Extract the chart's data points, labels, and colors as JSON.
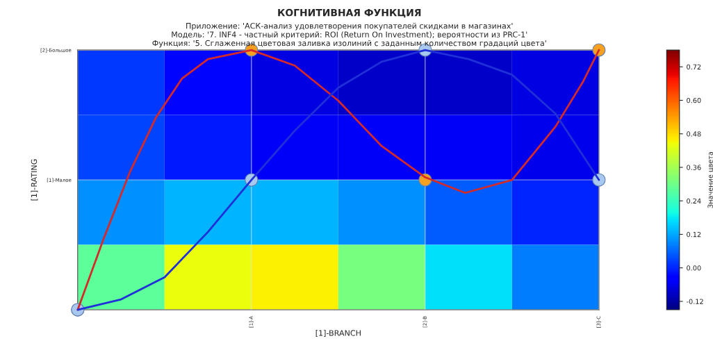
{
  "chart_data": {
    "type": "heatmap",
    "title": "КОГНИТИВНАЯ ФУНКЦИЯ",
    "subtitle": "Приложение: 'АСК-анализ удовлетворения покупателей скидками в магазинах'\nМодель: '7. INF4 - частный критерий: ROI (Return On Investment); вероятности из PRC-1'\nФункция: '5. Сглаженная цветовая заливка изолиний с заданным количеством градаций цвета'",
    "xlabel": "[1]-BRANCH",
    "ylabel": "[1]-RATING",
    "clabel": "Значение цвета",
    "xlim": [
      0,
      3
    ],
    "xticks": [
      {
        "value": 0,
        "label": null
      },
      {
        "value": 1,
        "label": "[1]-A"
      },
      {
        "value": 2,
        "label": "[2]-B"
      },
      {
        "value": 3,
        "label": "[3]-C"
      }
    ],
    "ylim": [
      0,
      2
    ],
    "yticks": [
      {
        "value": 0,
        "label": null
      },
      {
        "value": 1,
        "label": "[1]-Малое"
      },
      {
        "value": 2,
        "label": "[2]-Большое"
      }
    ],
    "cells": [
      [
        0.02,
        -0.03,
        -0.07,
        -0.09,
        -0.09,
        -0.07
      ],
      [
        0.03,
        -0.01,
        -0.05,
        -0.05,
        -0.05,
        -0.06
      ],
      [
        0.1,
        0.13,
        0.13,
        0.1,
        0.05,
        0.0
      ],
      [
        0.28,
        0.44,
        0.46,
        0.31,
        0.17,
        0.08
      ]
    ],
    "clim": [
      -0.15,
      0.78
    ],
    "cticks": [
      {
        "value": -0.12,
        "label": "-0.12"
      },
      {
        "value": 0,
        "label": "0.00"
      },
      {
        "value": 0.12,
        "label": "0.12"
      },
      {
        "value": 0.24,
        "label": "0.24"
      },
      {
        "value": 0.36,
        "label": "0.36"
      },
      {
        "value": 0.48,
        "label": "0.48"
      },
      {
        "value": 0.6,
        "label": "0.60"
      },
      {
        "value": 0.72,
        "label": "0.72"
      }
    ],
    "series": [
      {
        "type": "line",
        "color": "#d42a2a",
        "x": [
          0,
          0.15,
          0.3,
          0.45,
          0.6,
          0.75,
          1,
          1.25,
          1.5,
          1.75,
          2,
          2.23,
          2.5,
          2.75,
          2.91,
          3
        ],
        "values": [
          0,
          0.55,
          1.06,
          1.48,
          1.78,
          1.93,
          2,
          1.88,
          1.61,
          1.26,
          1.02,
          0.9,
          1.0,
          1.41,
          1.76,
          2
        ],
        "marker": "none"
      },
      {
        "type": "line",
        "color": "#2030d8",
        "x": [
          0,
          0.25,
          0.5,
          0.75,
          1,
          1.25,
          1.5,
          1.75,
          2,
          2.25,
          2.5,
          2.75,
          3
        ],
        "values": [
          0,
          0.08,
          0.25,
          0.6,
          1,
          1.38,
          1.71,
          1.91,
          2,
          1.93,
          1.81,
          1.51,
          1
        ],
        "marker": "none"
      },
      {
        "type": "scatter",
        "color": "#f5a020",
        "x": [
          0,
          1,
          2,
          3
        ],
        "values": [
          0,
          2,
          1,
          2
        ],
        "marker": "circle"
      },
      {
        "type": "scatter",
        "color": "#a8c8f0",
        "x": [
          0,
          1,
          2,
          3
        ],
        "values": [
          0,
          1,
          2,
          1
        ],
        "marker": "circle"
      }
    ],
    "grid": true
  }
}
